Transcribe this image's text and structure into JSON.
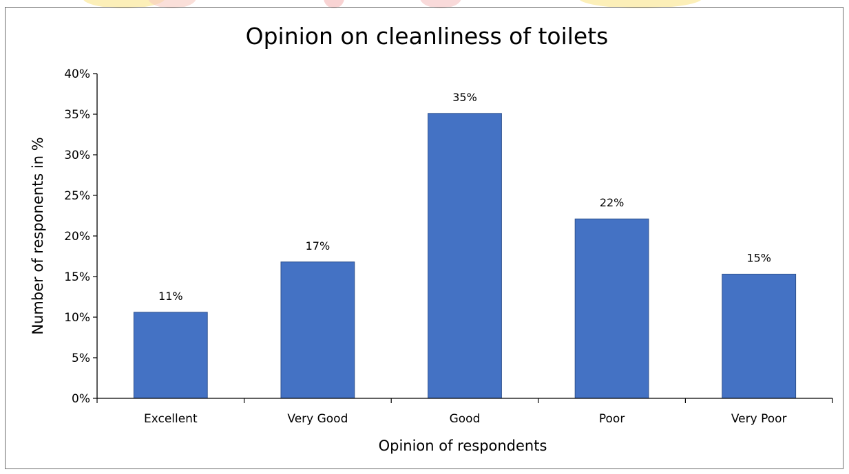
{
  "chart_data": {
    "type": "bar",
    "title": "Opinion on cleanliness of toilets",
    "xlabel": "Opinion of respondents",
    "ylabel": "Number of responents in %",
    "categories": [
      "Excellent",
      "Very Good",
      "Good",
      "Poor",
      "Very Poor"
    ],
    "values": [
      10.6,
      16.8,
      35.1,
      22.1,
      15.3
    ],
    "data_labels": [
      "11%",
      "17%",
      "35%",
      "22%",
      "15%"
    ],
    "ylim": [
      0,
      40
    ],
    "yticks": [
      "0%",
      "5%",
      "10%",
      "15%",
      "20%",
      "25%",
      "30%",
      "35%",
      "40%"
    ],
    "grid": false,
    "legend": "none",
    "bar_color": "#4472c4",
    "bar_edge_color": "#2f528f"
  }
}
